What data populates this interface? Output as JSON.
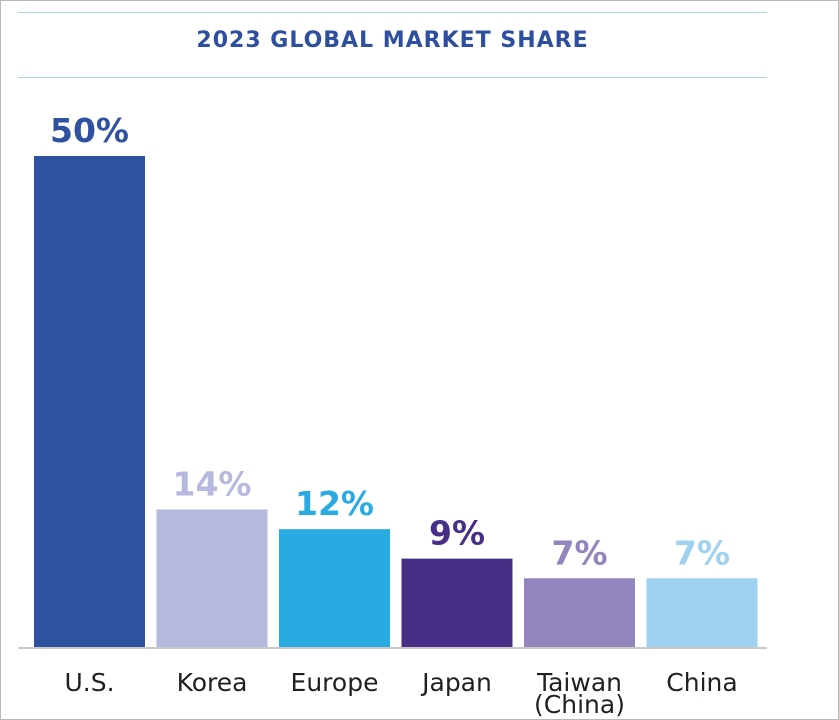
{
  "colors": {
    "title": "#2e4f9f",
    "rule": "#a9d7ee",
    "baseline": "#c9c9c9"
  },
  "chart_data": {
    "type": "bar",
    "title": "2023 GLOBAL MARKET SHARE",
    "xlabel": "",
    "ylabel": "",
    "ylim": [
      0,
      50
    ],
    "grid": false,
    "legend": "none",
    "categories": [
      "U.S.",
      "Korea",
      "Europe",
      "Japan",
      "Taiwan (China)",
      "China"
    ],
    "category_lines": [
      [
        "U.S."
      ],
      [
        "Korea"
      ],
      [
        "Europe"
      ],
      [
        "Japan"
      ],
      [
        "Taiwan",
        "(China)"
      ],
      [
        "China"
      ]
    ],
    "values": [
      50,
      14,
      12,
      9,
      7,
      7
    ],
    "value_labels": [
      "50%",
      "14%",
      "12%",
      "9%",
      "7%",
      "7%"
    ],
    "bar_colors": [
      "#2e52a0",
      "#b5b9de",
      "#29abe2",
      "#472e86",
      "#9384bd",
      "#9fd2f0"
    ],
    "label_colors": [
      "#2e52a0",
      "#b5b9de",
      "#29abe2",
      "#472e86",
      "#9384bd",
      "#9fd2f0"
    ]
  }
}
